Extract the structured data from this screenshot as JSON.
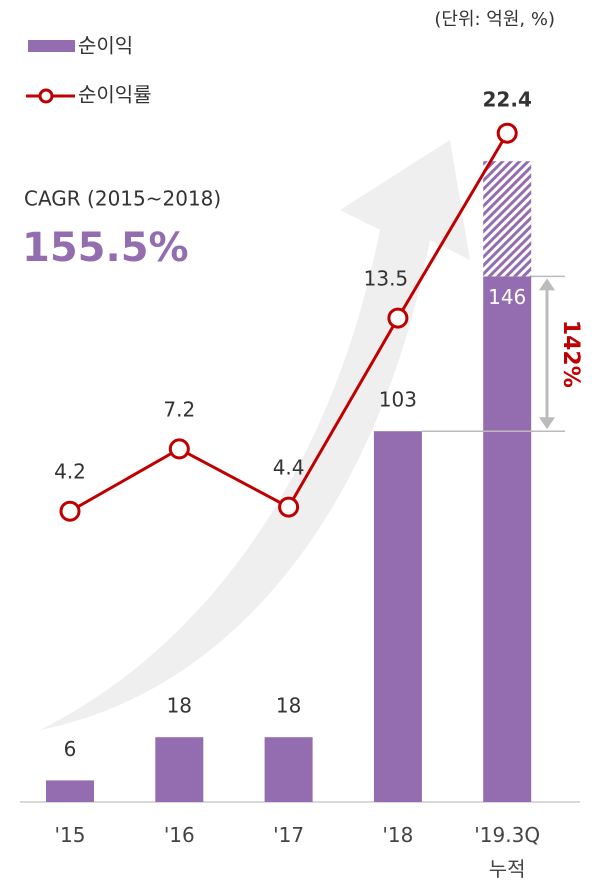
{
  "chart_data": {
    "type": "bar",
    "annotations": [
      "(단위: 억원, %)",
      "CAGR (2015~2018)",
      "155.5%",
      "142%"
    ],
    "categories": [
      "'15",
      "'16",
      "'17",
      "'18",
      "'19.3Q\n누적"
    ],
    "series": [
      {
        "name": "순이익",
        "type": "bar",
        "color": "#946db0",
        "values": [
          6,
          18,
          18,
          103,
          146
        ]
      },
      {
        "type": "bar",
        "color": "#946db0",
        "pattern": "hatch",
        "values": [
          null,
          null,
          null,
          null,
          32
        ]
      },
      {
        "name": "순이익률",
        "type": "line",
        "axis": "y2",
        "color": "#c00000",
        "values": [
          4.2,
          7.2,
          4.4,
          13.5,
          22.4
        ]
      }
    ],
    "ylim": [
      0,
      195
    ],
    "y2lim": [
      -9.8,
      24
    ],
    "grid": false
  }
}
